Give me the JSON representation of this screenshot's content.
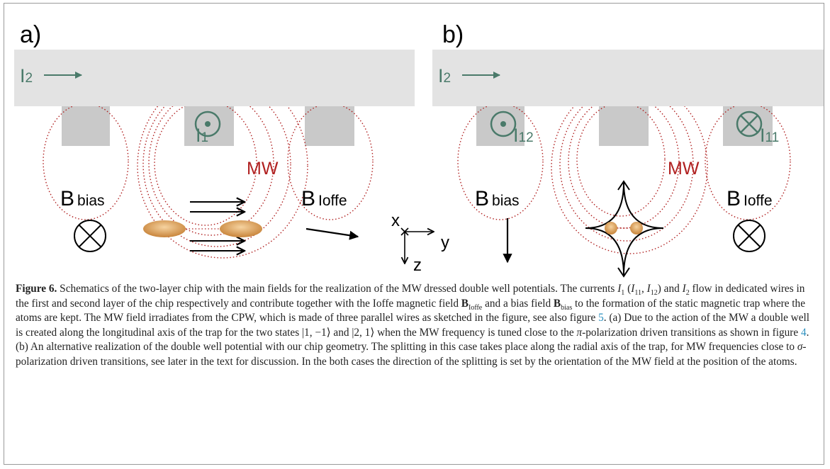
{
  "figure": {
    "panels": [
      {
        "label": "a)",
        "i2": {
          "symbol": "I",
          "sub": "2"
        },
        "wire_currents": [
          {
            "symbol": "I",
            "sub": "1"
          }
        ],
        "mw": "MW",
        "b_bias": {
          "symbol": "B",
          "sub": "bias"
        },
        "b_ioffe": {
          "symbol": "B",
          "sub": "Ioffe"
        },
        "axes": [
          "x",
          "y",
          "z"
        ]
      },
      {
        "label": "b)",
        "i2": {
          "symbol": "I",
          "sub": "2"
        },
        "wire_currents": [
          {
            "symbol": "I",
            "sub": "12"
          },
          {
            "symbol": "I",
            "sub": "11"
          }
        ],
        "mw": "MW",
        "b_bias": {
          "symbol": "B",
          "sub": "bias"
        },
        "b_ioffe": {
          "symbol": "B",
          "sub": "Ioffe"
        }
      }
    ]
  },
  "caption": {
    "runs": [
      "Figure 6.",
      " Schematics of the two-layer chip with the main fields for the realization of the MW dressed double well potentials. The currents ",
      "I",
      "1",
      " (",
      "I",
      "11",
      ", ",
      "I",
      "12",
      ") and ",
      "I",
      "2",
      " flow in dedicated wires in the first and second layer of the chip respectively and contribute together with the Ioffe magnetic field ",
      "B",
      "Ioffe",
      " and a bias field ",
      "B",
      "bias",
      " to the formation of the static magnetic trap where the atoms are kept. The MW field irradiates from the CPW, which is made of three parallel wires as sketched in the figure, see also figure ",
      "5",
      ". (a) Due to the action of the MW a double well is created along the longitudinal axis of the trap for the two states |1, −1⟩ and |2, 1⟩ when the MW frequency is tuned close to the ",
      "π",
      "-polarization driven transitions as shown in figure ",
      "4",
      ". (b) An alternative realization of the double well potential with our chip geometry. The splitting in this case takes place along the radial axis of the trap, for MW frequencies close to ",
      "σ",
      "-polarization driven transitions, see later in the text for discussion. In the both cases the direction of the splitting is set by the orientation of the MW field at the position of the atoms."
    ]
  }
}
